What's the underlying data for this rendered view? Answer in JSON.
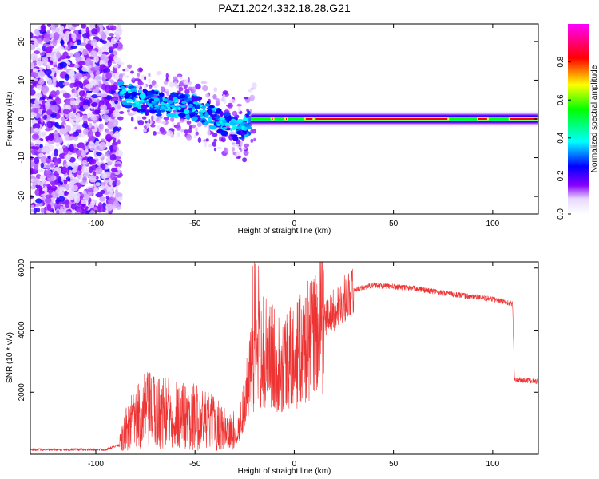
{
  "title": "PAZ1.2024.332.18.28.G21",
  "chart_data": [
    {
      "type": "heatmap",
      "xlabel": "Height of straight line (km)",
      "ylabel": "Frequency (Hz)",
      "xlim": [
        -133,
        123
      ],
      "ylim": [
        -24.5,
        24.5
      ],
      "xticks": [
        -100,
        -50,
        0,
        50,
        100
      ],
      "yticks": [
        -20,
        -10,
        0,
        10,
        20
      ],
      "colorbar": {
        "label": "Normalized spectral amplitude",
        "range": [
          0,
          1
        ],
        "ticks": [
          0.0,
          0.2,
          0.4,
          0.6,
          0.8
        ]
      },
      "ridge": [
        [
          -88,
          7
        ],
        [
          -80,
          5
        ],
        [
          -70,
          4
        ],
        [
          -60,
          3.5
        ],
        [
          -50,
          3
        ],
        [
          -40,
          0
        ],
        [
          -30,
          -2
        ],
        [
          -25,
          -3
        ],
        [
          -22,
          1
        ],
        [
          -10,
          1
        ],
        [
          0,
          0
        ],
        [
          20,
          0
        ],
        [
          60,
          0
        ],
        [
          100,
          0
        ],
        [
          123,
          0
        ]
      ]
    },
    {
      "type": "line",
      "xlabel": "Height of straight line (km)",
      "ylabel": "SNR (10 * v/v)",
      "xlim": [
        -133,
        123
      ],
      "ylim": [
        0,
        6200
      ],
      "xticks": [
        -100,
        -50,
        0,
        50,
        100
      ],
      "yticks": [
        2000,
        4000,
        6000
      ],
      "color": "#ee3333",
      "envelope": [
        [
          -133,
          150
        ],
        [
          -95,
          150
        ],
        [
          -88,
          300
        ],
        [
          -84,
          900
        ],
        [
          -75,
          1400
        ],
        [
          -60,
          1300
        ],
        [
          -50,
          1200
        ],
        [
          -40,
          1000
        ],
        [
          -32,
          700
        ],
        [
          -28,
          800
        ],
        [
          -24,
          2000
        ],
        [
          -20,
          3200
        ],
        [
          -15,
          3300
        ],
        [
          -8,
          3000
        ],
        [
          0,
          3100
        ],
        [
          5,
          3500
        ],
        [
          10,
          3800
        ],
        [
          15,
          4300
        ],
        [
          25,
          5000
        ],
        [
          30,
          5300
        ],
        [
          40,
          5450
        ],
        [
          60,
          5350
        ],
        [
          80,
          5150
        ],
        [
          100,
          5000
        ],
        [
          110,
          4850
        ],
        [
          111,
          2400
        ],
        [
          123,
          2350
        ]
      ]
    }
  ]
}
